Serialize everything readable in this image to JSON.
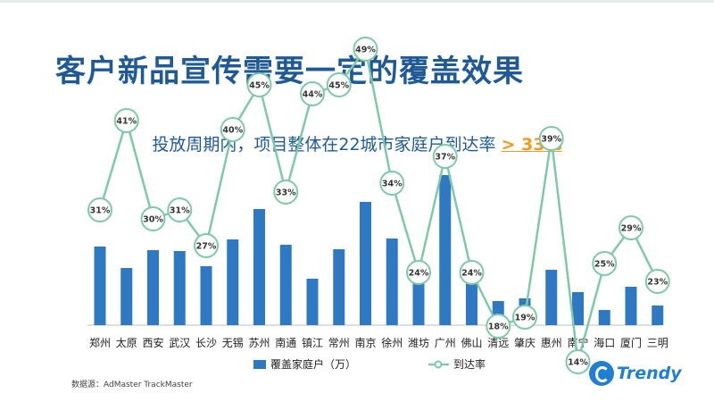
{
  "page": {
    "title": "客户新品宣传需要一定的覆盖效果",
    "subtitle_prefix": "投放周期内，项目整体在22城市家庭户到达率 ",
    "subtitle_highlight": "> 33%",
    "source": "数据源：AdMaster TrackMaster",
    "brand": "Trendy",
    "brand_icon": "trendy-logo-icon"
  },
  "colors": {
    "title": "#1f5a97",
    "bar": "#2e79c2",
    "line": "#7ec9a8",
    "highlight": "#f39a1e"
  },
  "chart_data": {
    "type": "bar",
    "categories": [
      "郑州",
      "太原",
      "西安",
      "武汉",
      "长沙",
      "无锡",
      "苏州",
      "南通",
      "镇江",
      "常州",
      "南京",
      "徐州",
      "潍坊",
      "广州",
      "佛山",
      "清远",
      "肇庆",
      "惠州",
      "南宁",
      "海口",
      "厦门",
      "三明"
    ],
    "series": [
      {
        "name": "覆盖家庭户（万）",
        "type": "bar",
        "values": [
          88,
          64,
          84,
          83,
          66,
          96,
          130,
          90,
          52,
          85,
          138,
          97,
          66,
          168,
          67,
          27,
          30,
          62,
          37,
          17,
          43,
          22
        ]
      },
      {
        "name": "到达率",
        "type": "line",
        "values": [
          31,
          41,
          30,
          31,
          27,
          40,
          45,
          33,
          44,
          45,
          49,
          34,
          24,
          37,
          24,
          18,
          19,
          39,
          14,
          25,
          29,
          23
        ],
        "labels": [
          "31%",
          "41%",
          "30%",
          "31%",
          "27%",
          "40%",
          "45%",
          "33%",
          "44%",
          "45%",
          "49%",
          "34%",
          "24%",
          "37%",
          "24%",
          "18%",
          "19%",
          "39%",
          "14%",
          "25%",
          "29%",
          "23%"
        ]
      }
    ],
    "legend_position": "bottom",
    "grid": false
  }
}
